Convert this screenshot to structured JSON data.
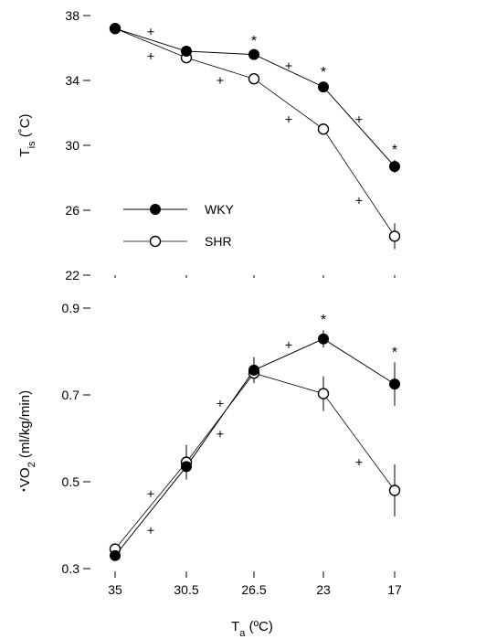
{
  "chart_data": [
    {
      "type": "line",
      "x_categories": [
        "35",
        "30.5",
        "26.5",
        "23",
        "17"
      ],
      "ylabel_main": "T",
      "ylabel_sub": "is",
      "ylabel_unit": " (˚C)",
      "yticks": [
        "38",
        "34",
        "30",
        "26",
        "22"
      ],
      "ylim": [
        22,
        38
      ],
      "series": [
        {
          "name": "WKY",
          "marker": "filled",
          "values": [
            37.2,
            35.8,
            35.6,
            33.6,
            28.7
          ],
          "err": [
            0.2,
            0.2,
            0.2,
            0.3,
            0.4
          ]
        },
        {
          "name": "SHR",
          "marker": "open",
          "values": [
            37.2,
            35.4,
            34.1,
            31.0,
            24.4
          ],
          "err": [
            0.2,
            0.2,
            0.2,
            0.3,
            0.8
          ]
        }
      ],
      "significance": [
        {
          "x_index": 2,
          "symbol": "*"
        },
        {
          "x_index": 3,
          "symbol": "*"
        },
        {
          "x_index": 4,
          "symbol": "*"
        }
      ],
      "plus_markers": [
        {
          "x": 0.5,
          "y": 37.0
        },
        {
          "x": 0.5,
          "y": 35.5
        },
        {
          "x": 1.5,
          "y": 34.0
        },
        {
          "x": 2.5,
          "y": 34.9
        },
        {
          "x": 2.5,
          "y": 31.6
        },
        {
          "x": 3.5,
          "y": 31.6
        },
        {
          "x": 3.5,
          "y": 26.6
        }
      ],
      "legend": [
        {
          "label": "WKY",
          "marker": "filled"
        },
        {
          "label": "SHR",
          "marker": "open"
        }
      ]
    },
    {
      "type": "line",
      "x_categories": [
        "35",
        "30.5",
        "26.5",
        "23",
        "17"
      ],
      "ylabel_main": "VO",
      "ylabel_sub": "2",
      "ylabel_unit": " (ml/kg/min)",
      "yticks": [
        "0.9",
        "0.7",
        "0.5",
        "0.3"
      ],
      "ylim": [
        0.3,
        0.9
      ],
      "xlabel_main": "T",
      "xlabel_sub": "a",
      "xlabel_unit": " (ºC)",
      "series": [
        {
          "name": "WKY",
          "marker": "filled",
          "values": [
            0.33,
            0.535,
            0.757,
            0.829,
            0.725
          ],
          "err": [
            0.01,
            0.02,
            0.03,
            0.02,
            0.05
          ]
        },
        {
          "name": "SHR",
          "marker": "open",
          "values": [
            0.345,
            0.545,
            0.75,
            0.703,
            0.48
          ],
          "err": [
            0.01,
            0.04,
            0.02,
            0.04,
            0.06
          ]
        }
      ],
      "significance": [
        {
          "x_index": 3,
          "symbol": "*"
        },
        {
          "x_index": 4,
          "symbol": "*"
        }
      ],
      "plus_markers": [
        {
          "x": 0.5,
          "y": 0.472
        },
        {
          "x": 0.5,
          "y": 0.388
        },
        {
          "x": 1.5,
          "y": 0.68
        },
        {
          "x": 1.5,
          "y": 0.61
        },
        {
          "x": 2.5,
          "y": 0.815
        },
        {
          "x": 3.5,
          "y": 0.545
        }
      ]
    }
  ]
}
